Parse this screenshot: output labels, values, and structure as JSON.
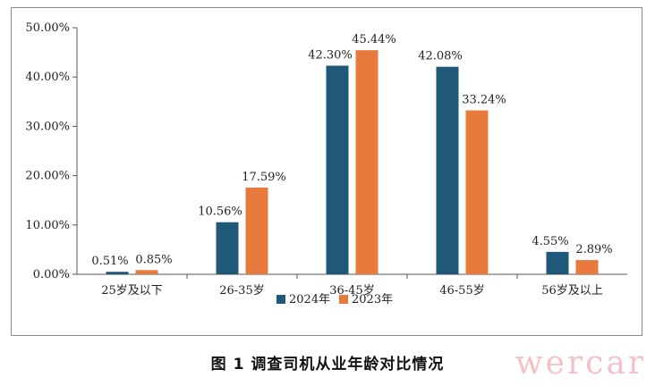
{
  "caption": "图 1  调查司机从业年龄对比情况",
  "watermark": "wercar",
  "colors": {
    "series_2024": "#1f5878",
    "series_2023": "#e87a3e",
    "axis": "#555555"
  },
  "chart_data": {
    "type": "bar",
    "categories": [
      "25岁及以下",
      "26-35岁",
      "36-45岁",
      "46-55岁",
      "56岁及以上"
    ],
    "series": [
      {
        "name": "2024年",
        "values": [
          0.51,
          10.56,
          42.3,
          42.08,
          4.55
        ],
        "labels": [
          "0.51%",
          "10.56%",
          "42.30%",
          "42.08%",
          "4.55%"
        ]
      },
      {
        "name": "2023年",
        "values": [
          0.85,
          17.59,
          45.44,
          33.24,
          2.89
        ],
        "labels": [
          "0.85%",
          "17.59%",
          "45.44%",
          "33.24%",
          "2.89%"
        ]
      }
    ],
    "ylim": [
      0,
      50
    ],
    "yticks": [
      0,
      10,
      20,
      30,
      40,
      50
    ],
    "ytick_labels": [
      "0.00%",
      "10.00%",
      "20.00%",
      "30.00%",
      "40.00%",
      "50.00%"
    ],
    "grid": false,
    "legend": "bottom-center",
    "title": "",
    "xlabel": "",
    "ylabel": ""
  }
}
